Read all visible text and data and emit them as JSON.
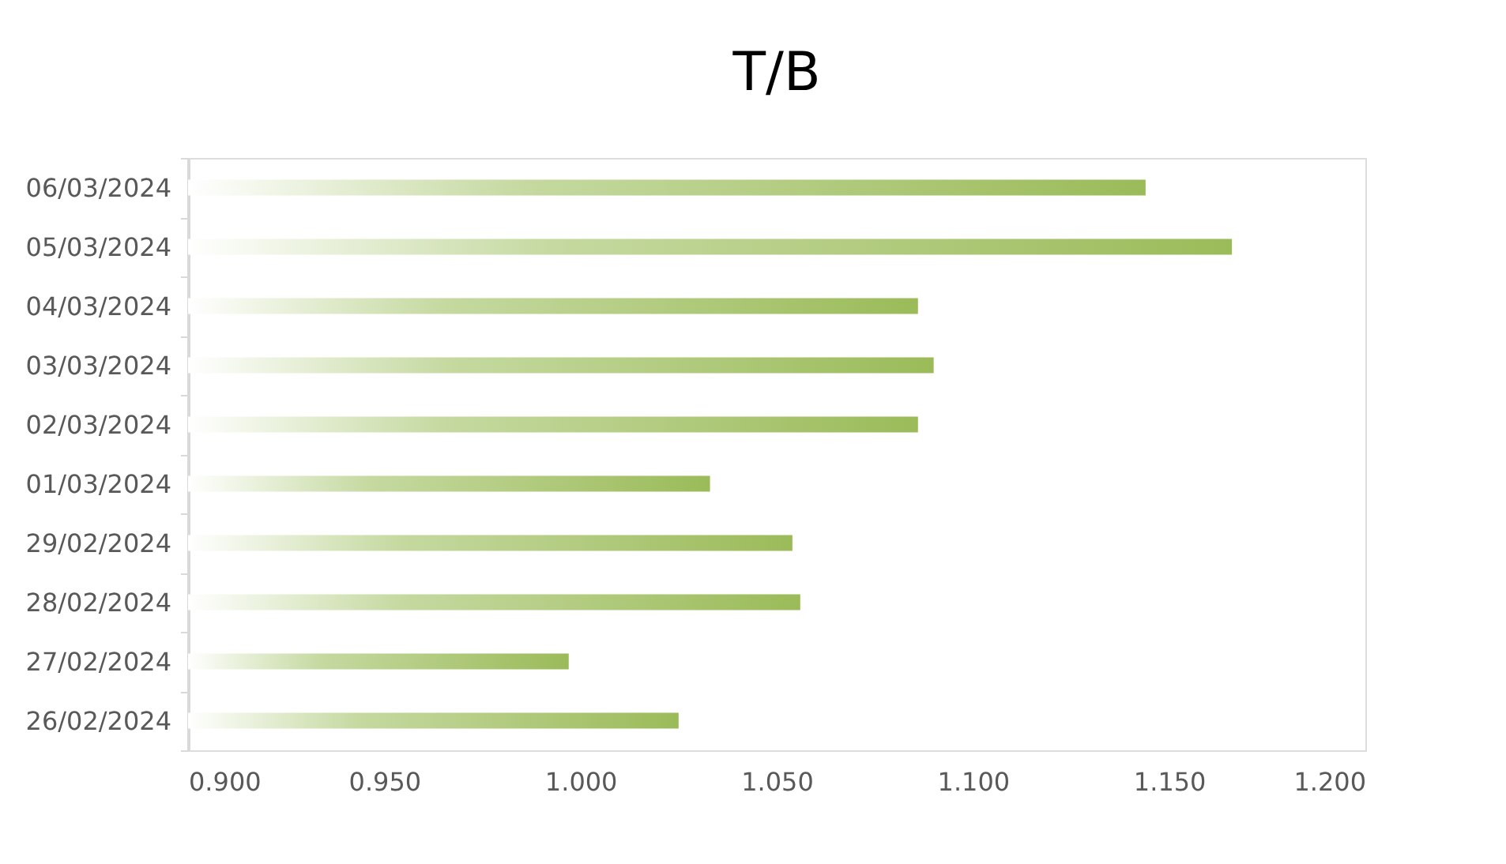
{
  "chart_data": {
    "type": "bar",
    "orientation": "horizontal",
    "title": "T/B",
    "categories": [
      "06/03/2024",
      "05/03/2024",
      "04/03/2024",
      "03/03/2024",
      "02/03/2024",
      "01/03/2024",
      "29/02/2024",
      "28/02/2024",
      "27/02/2024",
      "26/02/2024"
    ],
    "values": [
      1.144,
      1.166,
      1.086,
      1.09,
      1.086,
      1.033,
      1.054,
      1.056,
      0.997,
      1.025
    ],
    "color": "#9bbb59",
    "xlim": [
      0.9,
      1.2
    ],
    "xticks": [
      {
        "value": 0.9,
        "label": "0.900"
      },
      {
        "value": 0.95,
        "label": "0.950"
      },
      {
        "value": 1.0,
        "label": "1.000"
      },
      {
        "value": 1.05,
        "label": "1.050"
      },
      {
        "value": 1.1,
        "label": "1.100"
      },
      {
        "value": 1.15,
        "label": "1.150"
      },
      {
        "value": 1.2,
        "label": "1.200"
      }
    ],
    "grid": false
  }
}
